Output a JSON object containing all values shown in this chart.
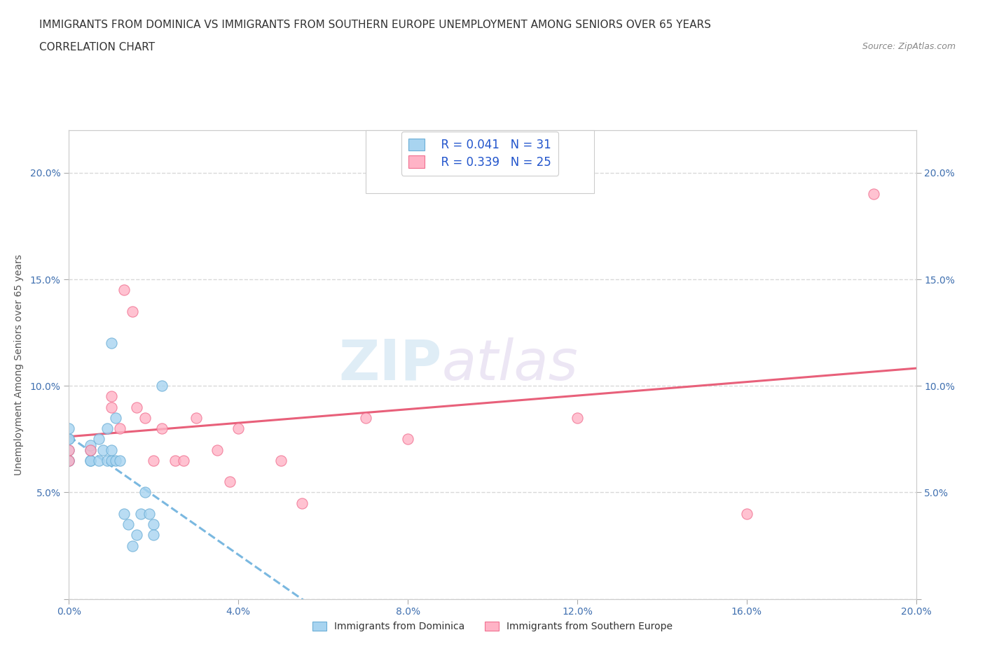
{
  "title_line1": "IMMIGRANTS FROM DOMINICA VS IMMIGRANTS FROM SOUTHERN EUROPE UNEMPLOYMENT AMONG SENIORS OVER 65 YEARS",
  "title_line2": "CORRELATION CHART",
  "source_text": "Source: ZipAtlas.com",
  "ylabel": "Unemployment Among Seniors over 65 years",
  "xlim": [
    0.0,
    0.2
  ],
  "ylim": [
    0.0,
    0.22
  ],
  "xticks": [
    0.0,
    0.04,
    0.08,
    0.12,
    0.16,
    0.2
  ],
  "yticks": [
    0.0,
    0.05,
    0.1,
    0.15,
    0.2
  ],
  "xticklabels": [
    "0.0%",
    "4.0%",
    "8.0%",
    "12.0%",
    "16.0%",
    "20.0%"
  ],
  "yticklabels": [
    "",
    "5.0%",
    "10.0%",
    "15.0%",
    "20.0%"
  ],
  "right_yticklabels": [
    "",
    "5.0%",
    "10.0%",
    "15.0%",
    "20.0%"
  ],
  "dominica_color": "#a8d4f0",
  "dominica_edge_color": "#6aaed6",
  "southern_color": "#ffb3c6",
  "southern_edge_color": "#f07090",
  "trendline_dominica_color": "#7ab8e0",
  "trendline_southern_color": "#e8607a",
  "legend_r_dominica": "R = 0.041",
  "legend_n_dominica": "N = 31",
  "legend_r_southern": "R = 0.339",
  "legend_n_southern": "N = 25",
  "watermark_zip": "ZIP",
  "watermark_atlas": "atlas",
  "background_color": "#ffffff",
  "grid_color": "#d8d8d8",
  "title_color": "#333333",
  "axis_label_color": "#555555",
  "tick_color": "#555555",
  "tick_label_color": "#4070b0",
  "dominica_x": [
    0.0,
    0.0,
    0.0,
    0.0,
    0.0,
    0.0,
    0.005,
    0.005,
    0.005,
    0.005,
    0.007,
    0.007,
    0.008,
    0.009,
    0.009,
    0.01,
    0.01,
    0.01,
    0.011,
    0.011,
    0.012,
    0.013,
    0.014,
    0.015,
    0.016,
    0.017,
    0.018,
    0.019,
    0.02,
    0.02,
    0.022
  ],
  "dominica_y": [
    0.075,
    0.075,
    0.08,
    0.07,
    0.065,
    0.065,
    0.065,
    0.065,
    0.07,
    0.072,
    0.065,
    0.075,
    0.07,
    0.065,
    0.08,
    0.065,
    0.07,
    0.12,
    0.065,
    0.085,
    0.065,
    0.04,
    0.035,
    0.025,
    0.03,
    0.04,
    0.05,
    0.04,
    0.035,
    0.03,
    0.1
  ],
  "southern_x": [
    0.0,
    0.0,
    0.005,
    0.01,
    0.01,
    0.012,
    0.013,
    0.015,
    0.016,
    0.018,
    0.02,
    0.022,
    0.025,
    0.027,
    0.03,
    0.035,
    0.038,
    0.04,
    0.05,
    0.055,
    0.07,
    0.08,
    0.12,
    0.16,
    0.19
  ],
  "southern_y": [
    0.065,
    0.07,
    0.07,
    0.09,
    0.095,
    0.08,
    0.145,
    0.135,
    0.09,
    0.085,
    0.065,
    0.08,
    0.065,
    0.065,
    0.085,
    0.07,
    0.055,
    0.08,
    0.065,
    0.045,
    0.085,
    0.075,
    0.085,
    0.04,
    0.19
  ],
  "title_fontsize": 11,
  "axis_label_fontsize": 10,
  "tick_fontsize": 10,
  "legend_fontsize": 12,
  "source_fontsize": 9
}
